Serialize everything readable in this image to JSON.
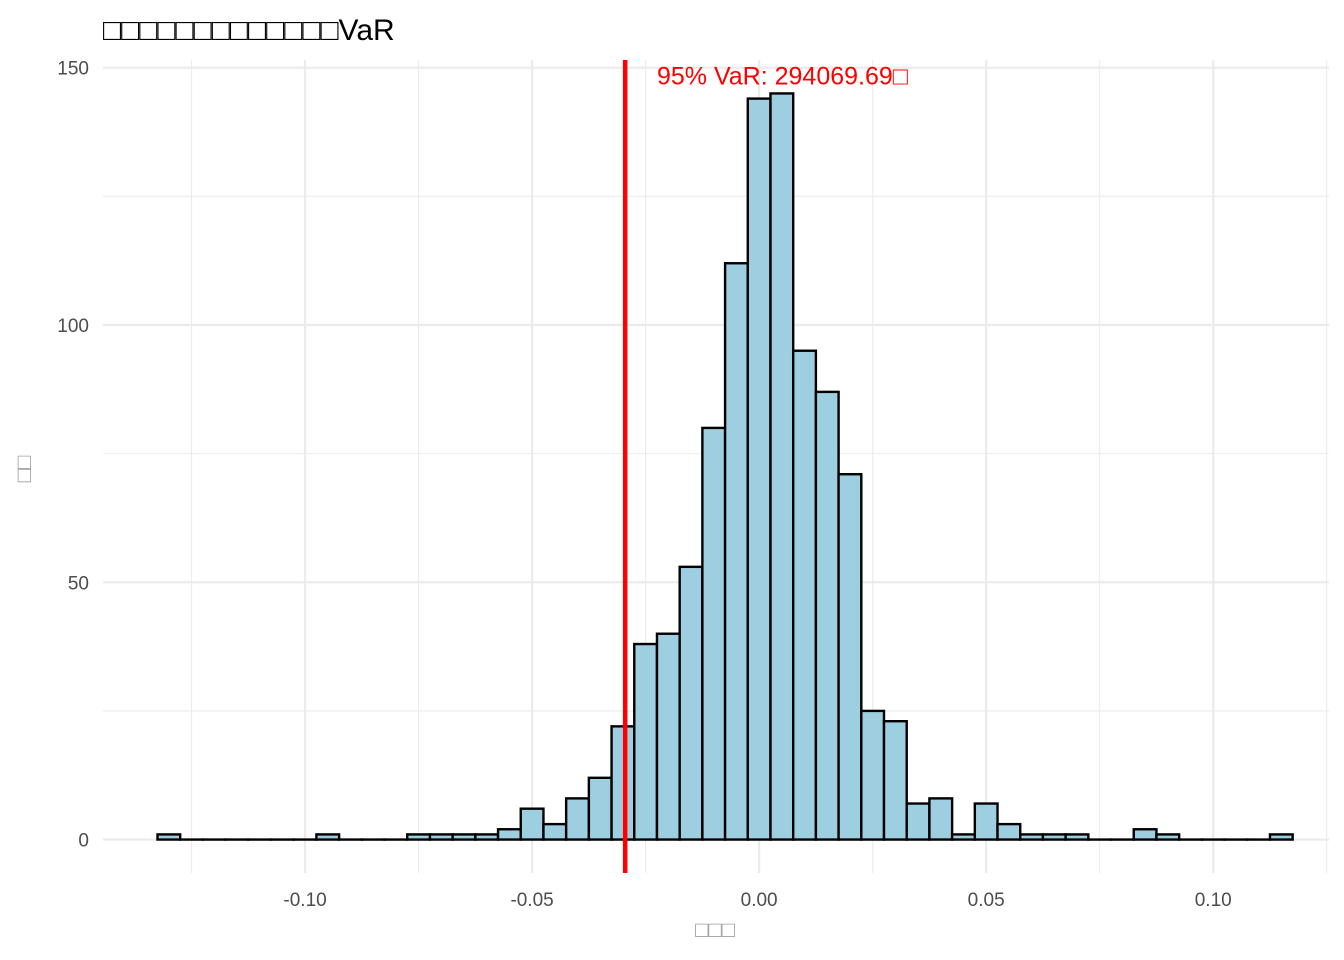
{
  "chart_data": {
    "type": "bar",
    "title": "□□□□□□□□□□□□□VaR",
    "xlabel": "□□□",
    "ylabel": "□□",
    "xlim": [
      -0.1445,
      0.1255
    ],
    "ylim": [
      -6.5,
      151.5
    ],
    "x_ticks": [
      -0.1,
      -0.05,
      0.0,
      0.05,
      0.1
    ],
    "x_tick_labels": [
      "-0.10",
      "-0.05",
      "0.00",
      "0.05",
      "0.10"
    ],
    "y_ticks": [
      0,
      50,
      100,
      150
    ],
    "y_tick_labels": [
      "0",
      "50",
      "100",
      "150"
    ],
    "grid": true,
    "bin_width": 0.005,
    "bin_centers": [
      -0.13,
      -0.125,
      -0.12,
      -0.115,
      -0.11,
      -0.105,
      -0.1,
      -0.095,
      -0.09,
      -0.085,
      -0.08,
      -0.075,
      -0.07,
      -0.065,
      -0.06,
      -0.055,
      -0.05,
      -0.045,
      -0.04,
      -0.035,
      -0.03,
      -0.025,
      -0.02,
      -0.015,
      -0.01,
      -0.005,
      0.0,
      0.005,
      0.01,
      0.015,
      0.02,
      0.025,
      0.03,
      0.035,
      0.04,
      0.045,
      0.05,
      0.055,
      0.06,
      0.065,
      0.07,
      0.075,
      0.08,
      0.085,
      0.09,
      0.095,
      0.1,
      0.105,
      0.11,
      0.115
    ],
    "values": [
      1,
      0,
      0,
      0,
      0,
      0,
      0,
      1,
      0,
      0,
      0,
      1,
      1,
      1,
      1,
      2,
      6,
      3,
      8,
      12,
      22,
      38,
      40,
      53,
      80,
      112,
      144,
      145,
      95,
      87,
      71,
      25,
      23,
      7,
      8,
      1,
      7,
      3,
      1,
      1,
      1,
      0,
      0,
      2,
      1,
      0,
      0,
      0,
      0,
      1
    ],
    "vline": {
      "x": -0.0295,
      "color": "#ff0000"
    },
    "annotation": {
      "text": "95% VaR: 294069.69□",
      "x": -0.0225,
      "y": 148.5,
      "color": "#ff0000"
    },
    "colors": {
      "bar_fill": "#9ecfe0",
      "bar_stroke": "#000000",
      "grid": "#ebebeb"
    }
  }
}
